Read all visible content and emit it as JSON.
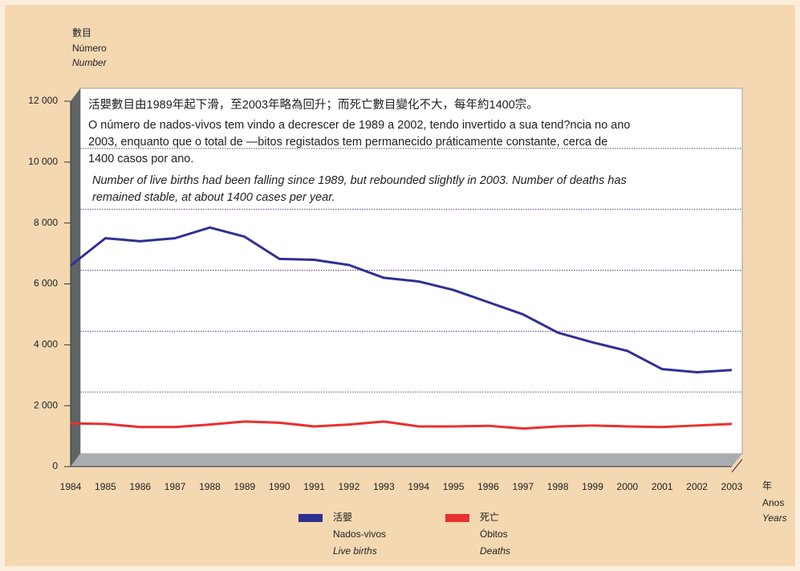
{
  "chart_data": {
    "type": "line",
    "y_label": [
      "數目",
      "Número",
      "Number"
    ],
    "x_label": [
      "年",
      "Anos",
      "Years"
    ],
    "annotation": {
      "zh": "活嬰數目由1989年起下滑，至2003年略為回升；而死亡數目變化不大，每年約1400宗。",
      "pt": [
        "O número de nados-vivos tem vindo a decrescer de 1989 a 2002, tendo invertido a sua tend?ncia no ano",
        "2003, enquanto que o total de —bitos registados tem permanecido práticamente constante, cerca de",
        "1400 casos por ano."
      ],
      "en": [
        "Number of live births had been falling since 1989, but rebounded slightly in 2003.  Number of deaths has",
        "remained stable, at about 1400 cases per year."
      ]
    },
    "categories": [
      "1984",
      "1985",
      "1986",
      "1987",
      "1988",
      "1989",
      "1990",
      "1991",
      "1992",
      "1993",
      "1994",
      "1995",
      "1996",
      "1997",
      "1998",
      "1999",
      "2000",
      "2001",
      "2002",
      "2003"
    ],
    "series": [
      {
        "name": "活嬰",
        "name_pt": "Nados-vivos",
        "name_en": "Live births",
        "color": "#2e3192",
        "values": [
          6600,
          7500,
          7400,
          7500,
          7850,
          7550,
          6820,
          6790,
          6620,
          6200,
          6080,
          5800,
          5400,
          5000,
          4400,
          4080,
          3800,
          3200,
          3100,
          3170
        ]
      },
      {
        "name": "死亡",
        "name_pt": "Óbitos",
        "name_en": "Deaths",
        "color": "#e8312f",
        "values": [
          1420,
          1400,
          1300,
          1300,
          1380,
          1480,
          1440,
          1320,
          1380,
          1480,
          1320,
          1320,
          1340,
          1250,
          1320,
          1350,
          1320,
          1300,
          1350,
          1400
        ]
      }
    ],
    "ylim": [
      0,
      12000
    ],
    "yticks": [
      0,
      {
        "value": 2000,
        "label": "2 000"
      },
      {
        "value": 4000,
        "label": "4 000"
      },
      {
        "value": 6000,
        "label": "6 000"
      },
      {
        "value": 8000,
        "label": "8 000"
      },
      {
        "value": 10000,
        "label": "10 000"
      },
      {
        "value": 12000,
        "label": "12 000"
      }
    ],
    "grid": true
  }
}
